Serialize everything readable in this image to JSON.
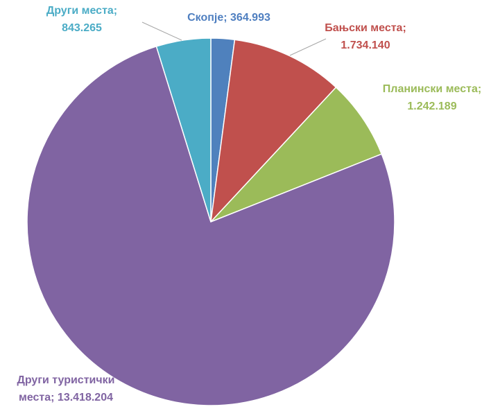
{
  "chart_data": {
    "type": "pie",
    "values": [
      364993,
      1734140,
      1242189,
      13418204,
      843265
    ],
    "value_labels": [
      "Скопје; 364.993",
      "Бањски места; 1.734.140",
      "Планински места; 1.242.189",
      "Други туристички места; 13.418.204",
      "Други места; 843.265"
    ],
    "colors": [
      "#4f81bd",
      "#c0504d",
      "#9bbb59",
      "#8064a2",
      "#4bacc6"
    ],
    "label_colors": [
      "#4f7fc0",
      "#c0504d",
      "#9bbb59",
      "#8064a2",
      "#4bacc6"
    ]
  }
}
